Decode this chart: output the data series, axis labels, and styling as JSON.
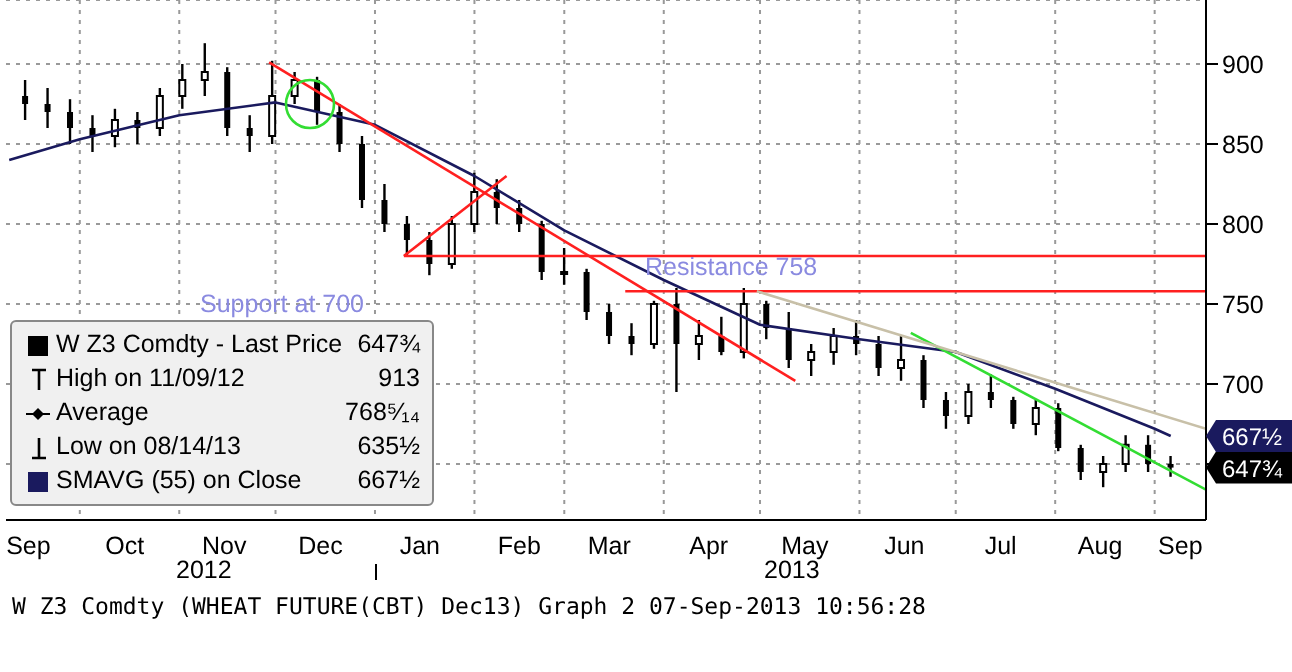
{
  "chart_data": {
    "type": "candlestick",
    "xlim": [
      "2012-09-08",
      "2013-09-17"
    ],
    "xticks": [
      {
        "value": "2012-09-15",
        "label": "Sep"
      },
      {
        "value": "2012-10-01",
        "label": null
      },
      {
        "value": "2012-10-15",
        "label": "Oct"
      },
      {
        "value": "2012-11-01",
        "label": null
      },
      {
        "value": "2012-11-15",
        "label": "Nov"
      },
      {
        "value": "2012-12-01",
        "label": null
      },
      {
        "value": "2012-12-15",
        "label": "Dec"
      },
      {
        "value": "2013-01-01",
        "label": null
      },
      {
        "value": "2013-01-15",
        "label": "Jan"
      },
      {
        "value": "2013-02-01",
        "label": null
      },
      {
        "value": "2013-02-15",
        "label": "Feb"
      },
      {
        "value": "2013-03-01",
        "label": null
      },
      {
        "value": "2013-03-15",
        "label": "Mar"
      },
      {
        "value": "2013-04-01",
        "label": null
      },
      {
        "value": "2013-04-15",
        "label": "Apr"
      },
      {
        "value": "2013-05-01",
        "label": null
      },
      {
        "value": "2013-05-15",
        "label": "May"
      },
      {
        "value": "2013-06-01",
        "label": null
      },
      {
        "value": "2013-06-15",
        "label": "Jun"
      },
      {
        "value": "2013-07-01",
        "label": null
      },
      {
        "value": "2013-07-15",
        "label": "Jul"
      },
      {
        "value": "2013-08-01",
        "label": null
      },
      {
        "value": "2013-08-15",
        "label": "Aug"
      },
      {
        "value": "2013-09-01",
        "label": null
      },
      {
        "value": "2013-09-09",
        "label": "Sep"
      }
    ],
    "ylim": [
      615,
      940
    ],
    "yticks": [
      {
        "value": 650,
        "label": null
      },
      700,
      750,
      800,
      850,
      900
    ],
    "grid": true,
    "legend": "bottom left",
    "series": [
      {
        "name": "W Z3 Comdty - Last Price",
        "color": "#000000",
        "x": [
          "2012-09-14",
          "2012-09-21",
          "2012-09-28",
          "2012-10-05",
          "2012-10-12",
          "2012-10-19",
          "2012-10-26",
          "2012-11-02",
          "2012-11-09",
          "2012-11-16",
          "2012-11-23",
          "2012-11-30",
          "2012-12-07",
          "2012-12-14",
          "2012-12-21",
          "2012-12-28",
          "2013-01-04",
          "2013-01-11",
          "2013-01-18",
          "2013-01-25",
          "2013-02-01",
          "2013-02-08",
          "2013-02-15",
          "2013-02-22",
          "2013-03-01",
          "2013-03-08",
          "2013-03-15",
          "2013-03-22",
          "2013-03-29",
          "2013-04-05",
          "2013-04-12",
          "2013-04-19",
          "2013-04-26",
          "2013-05-03",
          "2013-05-10",
          "2013-05-17",
          "2013-05-24",
          "2013-05-31",
          "2013-06-07",
          "2013-06-14",
          "2013-06-21",
          "2013-06-28",
          "2013-07-05",
          "2013-07-12",
          "2013-07-19",
          "2013-07-26",
          "2013-08-02",
          "2013-08-09",
          "2013-08-16",
          "2013-08-23",
          "2013-08-30",
          "2013-09-06"
        ],
        "ohlc": [
          [
            880,
            890,
            865,
            875
          ],
          [
            875,
            885,
            860,
            870
          ],
          [
            870,
            878,
            850,
            860
          ],
          [
            860,
            868,
            845,
            855
          ],
          [
            855,
            872,
            848,
            865
          ],
          [
            865,
            870,
            850,
            860
          ],
          [
            860,
            885,
            855,
            880
          ],
          [
            880,
            900,
            872,
            890
          ],
          [
            890,
            913,
            880,
            895
          ],
          [
            895,
            898,
            855,
            860
          ],
          [
            860,
            868,
            845,
            855
          ],
          [
            855,
            902,
            850,
            880
          ],
          [
            880,
            895,
            875,
            890
          ],
          [
            890,
            892,
            862,
            870
          ],
          [
            870,
            875,
            845,
            850
          ],
          [
            850,
            855,
            810,
            815
          ],
          [
            815,
            825,
            795,
            800
          ],
          [
            800,
            805,
            780,
            790
          ],
          [
            790,
            795,
            768,
            775
          ],
          [
            775,
            805,
            772,
            800
          ],
          [
            800,
            832,
            795,
            820
          ],
          [
            820,
            828,
            800,
            810
          ],
          [
            810,
            815,
            795,
            800
          ],
          [
            800,
            802,
            765,
            770
          ],
          [
            770,
            785,
            762,
            770
          ],
          [
            770,
            772,
            740,
            745
          ],
          [
            745,
            750,
            725,
            730
          ],
          [
            730,
            738,
            718,
            725
          ],
          [
            725,
            752,
            722,
            750
          ],
          [
            750,
            760,
            695,
            725
          ],
          [
            725,
            740,
            715,
            730
          ],
          [
            730,
            742,
            718,
            720
          ],
          [
            720,
            760,
            716,
            750
          ],
          [
            750,
            752,
            728,
            735
          ],
          [
            735,
            745,
            710,
            715
          ],
          [
            715,
            725,
            705,
            720
          ],
          [
            720,
            735,
            712,
            730
          ],
          [
            730,
            740,
            718,
            725
          ],
          [
            725,
            730,
            705,
            710
          ],
          [
            710,
            730,
            702,
            715
          ],
          [
            715,
            718,
            685,
            690
          ],
          [
            690,
            695,
            672,
            680
          ],
          [
            680,
            700,
            675,
            695
          ],
          [
            695,
            706,
            685,
            690
          ],
          [
            690,
            692,
            672,
            675
          ],
          [
            675,
            690,
            668,
            685
          ],
          [
            685,
            688,
            658,
            660
          ],
          [
            660,
            662,
            640,
            645
          ],
          [
            645,
            655,
            635.5,
            650
          ],
          [
            650,
            668,
            645,
            662
          ],
          [
            662,
            668,
            645,
            650
          ],
          [
            650,
            655,
            642,
            647.75
          ]
        ]
      },
      {
        "name": "SMAVG (55) on Close",
        "type": "line",
        "color": "#1a1a5e",
        "x": [
          "2012-09-09",
          "2012-10-01",
          "2012-11-01",
          "2012-12-01",
          "2013-01-01",
          "2013-02-01",
          "2013-03-01",
          "2013-04-01",
          "2013-05-01",
          "2013-06-01",
          "2013-07-01",
          "2013-08-01",
          "2013-09-01",
          "2013-09-06"
        ],
        "values": [
          840,
          853,
          868,
          876,
          862,
          830,
          796,
          765,
          737,
          728,
          720,
          697,
          672,
          667.5
        ]
      },
      {
        "type": "line",
        "color": "#ff2020",
        "x": [
          "2012-11-29",
          "2013-05-12"
        ],
        "values": [
          901,
          702
        ]
      },
      {
        "type": "line",
        "color": "#ff2020",
        "x": [
          "2013-01-10",
          "2013-02-11"
        ],
        "values": [
          780,
          830
        ]
      },
      {
        "type": "line",
        "color": "#ff2020",
        "x": [
          "2013-01-10",
          "2013-09-17"
        ],
        "values": [
          780,
          780
        ]
      },
      {
        "type": "line",
        "color": "#ff2020",
        "x": [
          "2013-03-20",
          "2013-09-17"
        ],
        "values": [
          758,
          758
        ]
      },
      {
        "type": "line",
        "color": "#33dd33",
        "x": [
          "2013-06-17",
          "2013-09-17"
        ],
        "values": [
          732,
          634
        ]
      },
      {
        "type": "line",
        "color": "#c8c0a8",
        "x": [
          "2013-04-30",
          "2013-09-17"
        ],
        "values": [
          758,
          672
        ]
      }
    ],
    "annotations": [
      {
        "text": "647¾",
        "x": "2013-09-06",
        "y": 647.75
      },
      {
        "text": "667½",
        "x": "2013-09-06",
        "y": 667.5
      },
      "High on 11/09/12",
      "913",
      "Average",
      "768⁵⁄₁₄",
      "Low on 08/14/13",
      "635½",
      "Support at 700",
      {
        "text": "Resistance 758",
        "x": "2013-04-22",
        "y": 758
      },
      "2012",
      "2013",
      "W Z3 Comdty (WHEAT FUTURE(CBT) Dec13) Graph 2 07-Sep-2013 10:56:28"
    ]
  }
}
